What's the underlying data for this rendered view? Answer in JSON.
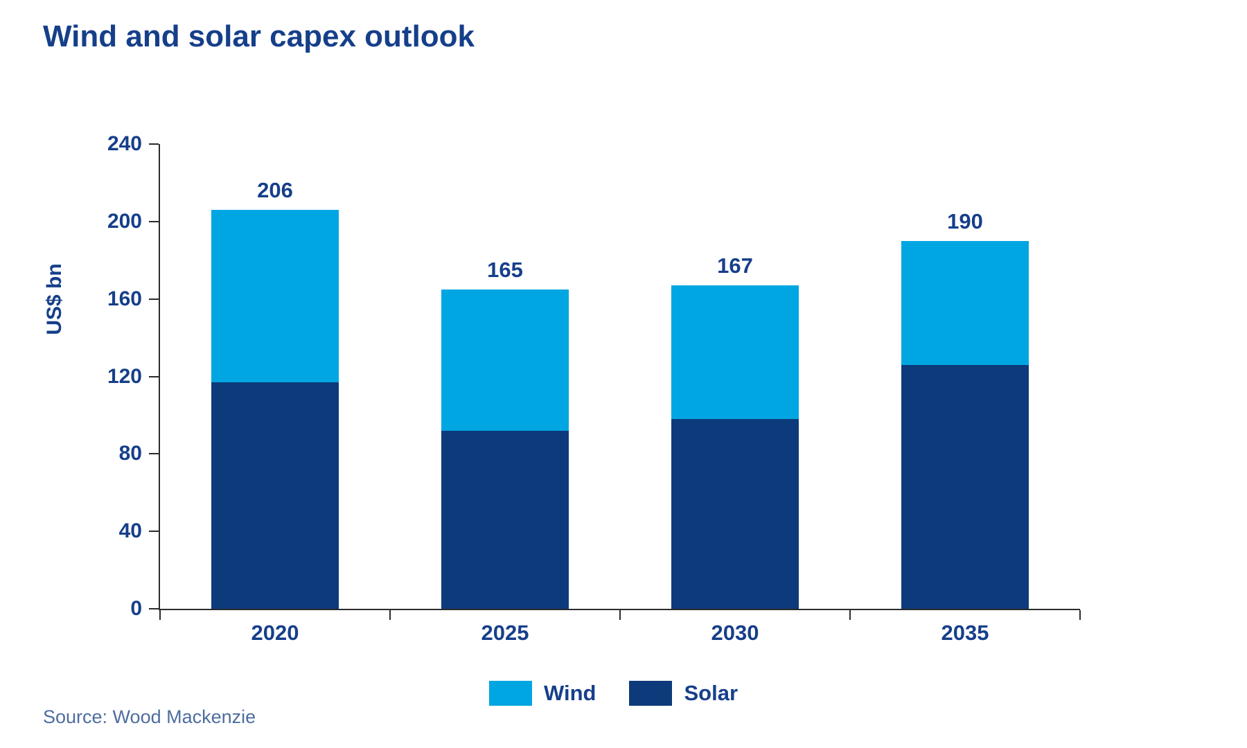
{
  "title": "Wind and solar capex outlook",
  "source": "Source: Wood Mackenzie",
  "colors": {
    "wind": "#00A6E1",
    "solar": "#0D3A7B",
    "text_navy": "#163F8A",
    "axis": "#2B2B2B",
    "source_text": "#4E6D9F"
  },
  "chart_data": {
    "type": "bar",
    "stacked": true,
    "title": "Wind and solar capex outlook",
    "ylabel": "US$ bn",
    "xlabel": "",
    "categories": [
      "2020",
      "2025",
      "2030",
      "2035"
    ],
    "series": [
      {
        "name": "Wind",
        "color": "#00A6E1",
        "values": [
          89,
          73,
          69,
          64
        ]
      },
      {
        "name": "Solar",
        "color": "#0D3A7B",
        "values": [
          117,
          92,
          98,
          126
        ]
      }
    ],
    "stack_order_bottom_to_top": [
      "Solar",
      "Wind"
    ],
    "totals": [
      206,
      165,
      167,
      190
    ],
    "ylim": [
      0,
      240
    ],
    "ytick_step": 40,
    "grid": false,
    "legend_position": "bottom",
    "legend": [
      "Wind",
      "Solar"
    ]
  }
}
